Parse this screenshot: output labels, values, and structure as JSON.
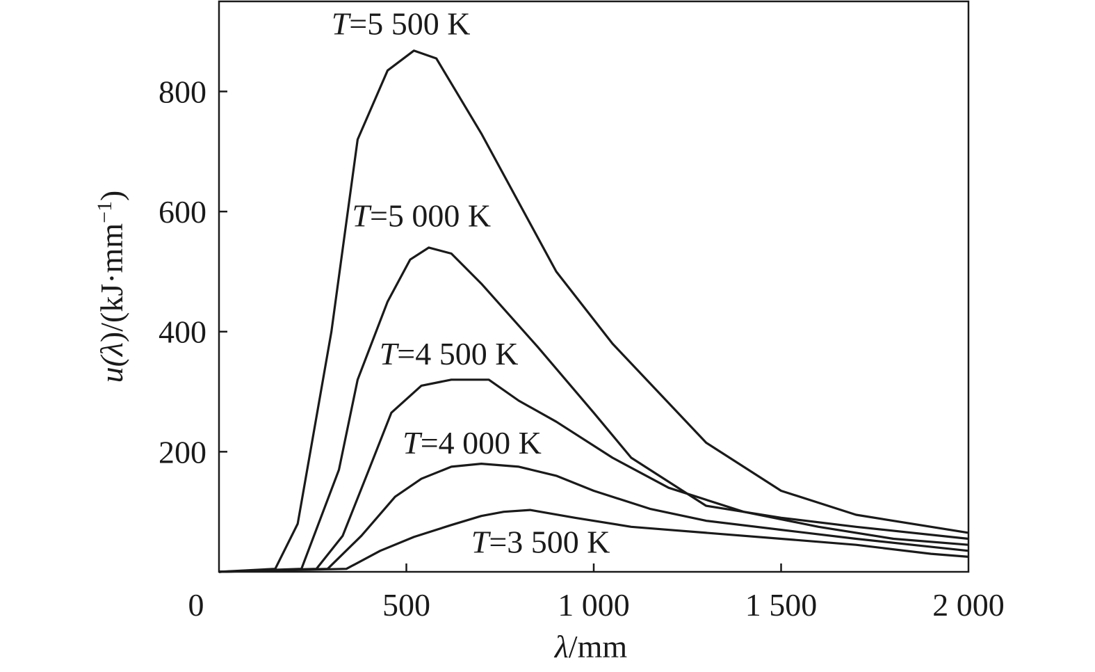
{
  "chart_data": {
    "type": "line",
    "xlabel": {
      "symbol": "λ",
      "unit": "/mm"
    },
    "ylabel": {
      "prefix": "u(",
      "symbol": "λ",
      "mid": ")/(kJ·mm",
      "sup": "−1",
      "suffix": ")"
    },
    "xlim": [
      0,
      2000
    ],
    "ylim": [
      0,
      950
    ],
    "xticks": [
      {
        "value": 0,
        "label": "0"
      },
      {
        "value": 500,
        "label": "500"
      },
      {
        "value": 1000,
        "label": "1 000"
      },
      {
        "value": 1500,
        "label": "1 500"
      },
      {
        "value": 2000,
        "label": "2 000"
      }
    ],
    "yticks": [
      {
        "value": 200,
        "label": "200"
      },
      {
        "value": 400,
        "label": "400"
      },
      {
        "value": 600,
        "label": "600"
      },
      {
        "value": 800,
        "label": "800"
      }
    ],
    "grid": false,
    "series": [
      {
        "name": "T=5 500 K",
        "label_var": "T",
        "label_rest": "=5 500 K",
        "label_at": [
          300,
          895
        ],
        "points": [
          [
            0,
            0
          ],
          [
            150,
            5
          ],
          [
            210,
            80
          ],
          [
            300,
            400
          ],
          [
            370,
            720
          ],
          [
            450,
            835
          ],
          [
            520,
            868
          ],
          [
            580,
            855
          ],
          [
            700,
            730
          ],
          [
            900,
            500
          ],
          [
            1050,
            380
          ],
          [
            1300,
            215
          ],
          [
            1500,
            135
          ],
          [
            1700,
            95
          ],
          [
            2000,
            65
          ]
        ]
      },
      {
        "name": "T=5 000 K",
        "label_var": "T",
        "label_rest": "=5 000 K",
        "label_at": [
          355,
          575
        ],
        "points": [
          [
            0,
            0
          ],
          [
            220,
            5
          ],
          [
            320,
            170
          ],
          [
            370,
            320
          ],
          [
            450,
            450
          ],
          [
            510,
            520
          ],
          [
            560,
            540
          ],
          [
            620,
            530
          ],
          [
            700,
            480
          ],
          [
            850,
            375
          ],
          [
            1000,
            265
          ],
          [
            1100,
            190
          ],
          [
            1300,
            110
          ],
          [
            1500,
            90
          ],
          [
            1700,
            75
          ],
          [
            2000,
            55
          ]
        ]
      },
      {
        "name": "T=4 500 K",
        "label_var": "T",
        "label_rest": "=4 500 K",
        "label_at": [
          428,
          345
        ],
        "points": [
          [
            0,
            0
          ],
          [
            260,
            5
          ],
          [
            330,
            60
          ],
          [
            400,
            170
          ],
          [
            460,
            265
          ],
          [
            540,
            310
          ],
          [
            620,
            320
          ],
          [
            720,
            320
          ],
          [
            800,
            285
          ],
          [
            900,
            250
          ],
          [
            1050,
            190
          ],
          [
            1200,
            140
          ],
          [
            1400,
            100
          ],
          [
            1600,
            75
          ],
          [
            1800,
            55
          ],
          [
            2000,
            45
          ]
        ]
      },
      {
        "name": "T=4 000 K",
        "label_var": "T",
        "label_rest": "=4 000 K",
        "label_at": [
          490,
          197
        ],
        "points": [
          [
            0,
            0
          ],
          [
            290,
            5
          ],
          [
            380,
            60
          ],
          [
            470,
            125
          ],
          [
            540,
            155
          ],
          [
            620,
            175
          ],
          [
            700,
            180
          ],
          [
            800,
            175
          ],
          [
            900,
            160
          ],
          [
            1000,
            135
          ],
          [
            1150,
            105
          ],
          [
            1300,
            85
          ],
          [
            1500,
            70
          ],
          [
            1700,
            55
          ],
          [
            1850,
            45
          ],
          [
            2000,
            35
          ]
        ]
      },
      {
        "name": "T=3 500 K",
        "label_var": "T",
        "label_rest": "=3 500 K",
        "label_at": [
          673,
          32
        ],
        "points": [
          [
            0,
            0
          ],
          [
            340,
            5
          ],
          [
            430,
            35
          ],
          [
            520,
            58
          ],
          [
            620,
            78
          ],
          [
            700,
            93
          ],
          [
            760,
            100
          ],
          [
            830,
            103
          ],
          [
            950,
            90
          ],
          [
            1100,
            75
          ],
          [
            1300,
            65
          ],
          [
            1500,
            55
          ],
          [
            1700,
            45
          ],
          [
            1900,
            30
          ],
          [
            2000,
            25
          ]
        ]
      }
    ]
  }
}
